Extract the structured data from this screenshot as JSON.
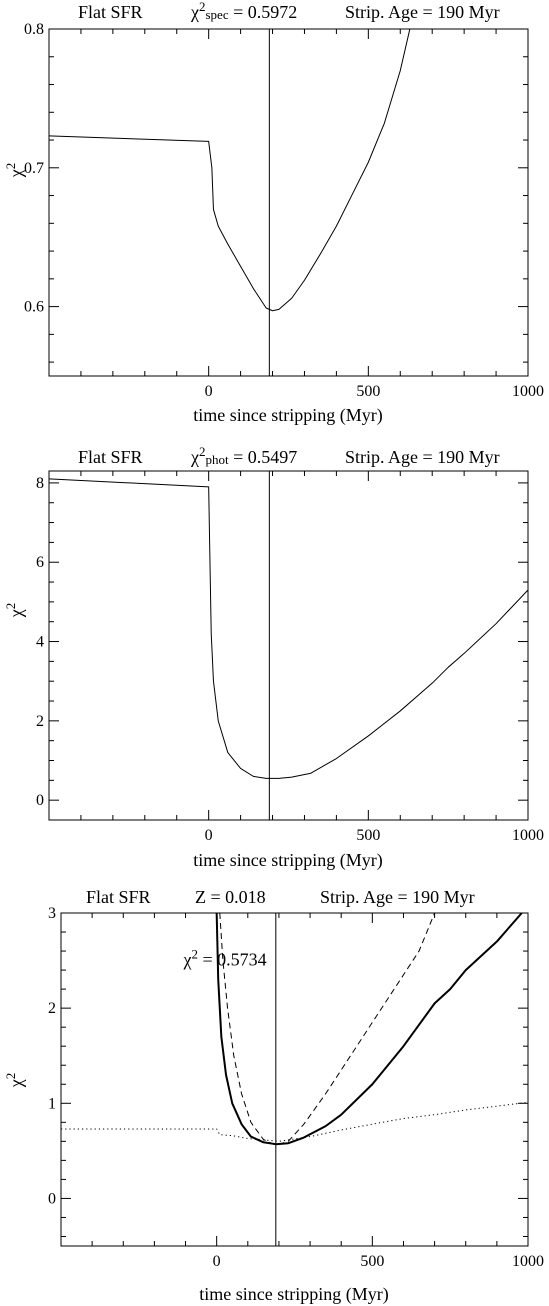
{
  "chart_data": [
    {
      "type": "line",
      "header": {
        "left": "Flat SFR",
        "chi_sym": "χ",
        "chi_sup": "2",
        "chi_sub": "spec",
        "chi_value": " = 0.5972",
        "right": "Strip. Age = 190 Myr"
      },
      "xlabel": "time since stripping (Myr)",
      "ylabel": "χ",
      "ylabel_sup": "2",
      "xlim": [
        -500,
        1000
      ],
      "ylim": [
        0.55,
        0.8
      ],
      "xticks": [
        0,
        500,
        1000
      ],
      "xtick_labels": [
        "0",
        "500",
        "1000"
      ],
      "xminor": 100,
      "yticks": [
        0.6,
        0.7,
        0.8
      ],
      "ytick_labels": [
        "0.6",
        "0.7",
        "0.8"
      ],
      "yminor": 0.02,
      "vline": 190,
      "series": [
        {
          "style": "solid",
          "width": 1,
          "points": [
            [
              -500,
              0.723
            ],
            [
              0,
              0.719
            ],
            [
              10,
              0.7
            ],
            [
              15,
              0.67
            ],
            [
              30,
              0.658
            ],
            [
              60,
              0.645
            ],
            [
              100,
              0.629
            ],
            [
              140,
              0.613
            ],
            [
              180,
              0.599
            ],
            [
              200,
              0.597
            ],
            [
              220,
              0.598
            ],
            [
              260,
              0.606
            ],
            [
              300,
              0.619
            ],
            [
              350,
              0.638
            ],
            [
              400,
              0.658
            ],
            [
              450,
              0.681
            ],
            [
              500,
              0.704
            ],
            [
              550,
              0.732
            ],
            [
              600,
              0.77
            ],
            [
              630,
              0.8
            ]
          ]
        }
      ]
    },
    {
      "type": "line",
      "header": {
        "left": "Flat SFR",
        "chi_sym": "χ",
        "chi_sup": "2",
        "chi_sub": "phot",
        "chi_value": " = 0.5497",
        "right": "Strip. Age = 190 Myr"
      },
      "xlabel": "time since stripping (Myr)",
      "ylabel": "χ",
      "ylabel_sup": "2",
      "xlim": [
        -500,
        1000
      ],
      "ylim": [
        -0.5,
        8.3
      ],
      "xticks": [
        0,
        500,
        1000
      ],
      "xtick_labels": [
        "0",
        "500",
        "1000"
      ],
      "xminor": 100,
      "yticks": [
        0,
        2,
        4,
        6,
        8
      ],
      "ytick_labels": [
        "0",
        "2",
        "4",
        "6",
        "8"
      ],
      "yminor": 0.5,
      "vline": 190,
      "series": [
        {
          "style": "solid",
          "width": 1,
          "points": [
            [
              -500,
              8.1
            ],
            [
              0,
              7.9
            ],
            [
              3,
              6.5
            ],
            [
              8,
              4.2
            ],
            [
              15,
              3.0
            ],
            [
              30,
              2.0
            ],
            [
              60,
              1.2
            ],
            [
              100,
              0.8
            ],
            [
              140,
              0.6
            ],
            [
              180,
              0.55
            ],
            [
              220,
              0.55
            ],
            [
              260,
              0.58
            ],
            [
              320,
              0.68
            ],
            [
              400,
              1.05
            ],
            [
              500,
              1.62
            ],
            [
              600,
              2.25
            ],
            [
              700,
              2.95
            ],
            [
              750,
              3.35
            ],
            [
              800,
              3.7
            ],
            [
              900,
              4.45
            ],
            [
              1000,
              5.3
            ]
          ]
        }
      ]
    },
    {
      "type": "line",
      "header": {
        "left": "Flat SFR",
        "middle": "Z = 0.018",
        "right": "Strip. Age = 190 Myr"
      },
      "annotation": {
        "chi_sym": "χ",
        "chi_sup": "2",
        "chi_value": " = 0.5734",
        "x": 600,
        "y": 2.45
      },
      "xlabel": "time since stripping (Myr)",
      "ylabel": "χ",
      "ylabel_sup": "2",
      "xlim": [
        -500,
        1000
      ],
      "ylim": [
        -0.5,
        3.0
      ],
      "xticks": [
        0,
        500,
        1000
      ],
      "xtick_labels": [
        "0",
        "500",
        "1000"
      ],
      "xminor": 100,
      "yticks": [
        0,
        1,
        2,
        3
      ],
      "ytick_labels": [
        "0",
        "1",
        "2",
        "3"
      ],
      "yminor": 0.2,
      "vline": 190,
      "series": [
        {
          "style": "solid",
          "width": 2,
          "points": [
            [
              0,
              3.0
            ],
            [
              5,
              2.3
            ],
            [
              15,
              1.7
            ],
            [
              30,
              1.3
            ],
            [
              50,
              1.0
            ],
            [
              80,
              0.78
            ],
            [
              110,
              0.65
            ],
            [
              150,
              0.59
            ],
            [
              190,
              0.57
            ],
            [
              230,
              0.58
            ],
            [
              280,
              0.64
            ],
            [
              350,
              0.76
            ],
            [
              400,
              0.88
            ],
            [
              500,
              1.2
            ],
            [
              600,
              1.6
            ],
            [
              700,
              2.05
            ],
            [
              750,
              2.2
            ],
            [
              800,
              2.4
            ],
            [
              900,
              2.7
            ],
            [
              980,
              3.0
            ]
          ]
        },
        {
          "style": "dashed",
          "width": 1,
          "points": [
            [
              10,
              3.0
            ],
            [
              20,
              2.5
            ],
            [
              35,
              2.0
            ],
            [
              55,
              1.5
            ],
            [
              80,
              1.1
            ],
            [
              110,
              0.8
            ],
            [
              150,
              0.62
            ],
            [
              190,
              0.56
            ],
            [
              230,
              0.6
            ],
            [
              280,
              0.78
            ],
            [
              350,
              1.1
            ],
            [
              450,
              1.6
            ],
            [
              550,
              2.1
            ],
            [
              650,
              2.6
            ],
            [
              700,
              3.0
            ]
          ]
        },
        {
          "style": "dotted",
          "width": 1,
          "points": [
            [
              -500,
              0.73
            ],
            [
              -100,
              0.73
            ],
            [
              0,
              0.73
            ],
            [
              10,
              0.67
            ],
            [
              50,
              0.66
            ],
            [
              100,
              0.63
            ],
            [
              200,
              0.6
            ],
            [
              300,
              0.65
            ],
            [
              400,
              0.72
            ],
            [
              500,
              0.78
            ],
            [
              600,
              0.84
            ],
            [
              700,
              0.88
            ],
            [
              800,
              0.93
            ],
            [
              900,
              0.97
            ],
            [
              1000,
              1.01
            ]
          ]
        }
      ]
    }
  ]
}
